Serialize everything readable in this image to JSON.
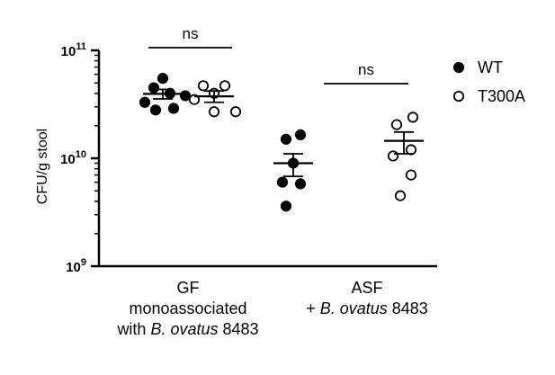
{
  "chart_data": {
    "type": "scatter",
    "ylabel": "CFU/g stool",
    "yscale": "log",
    "ylim": [
      1000000000,
      100000000000
    ],
    "yticks": [
      {
        "value": 1000000000,
        "base": "10",
        "exp": "9"
      },
      {
        "value": 10000000000,
        "base": "10",
        "exp": "10"
      },
      {
        "value": 100000000000,
        "base": "10",
        "exp": "11"
      }
    ],
    "groups": [
      {
        "lines": [
          [
            {
              "text": "GF",
              "italic": false
            }
          ],
          [
            {
              "text": "monoassociated",
              "italic": false
            }
          ],
          [
            {
              "text": "with ",
              "italic": false
            },
            {
              "text": "B. ovatus",
              "italic": true
            },
            {
              "text": " 8483",
              "italic": false
            }
          ]
        ],
        "annotation": "ns",
        "series": [
          {
            "series_index": 0,
            "values": [
              55000000000,
              45000000000,
              40000000000,
              38000000000,
              33000000000,
              29000000000,
              28000000000
            ],
            "mean": 39500000000,
            "sem_low": 35500000000,
            "sem_high": 43500000000
          },
          {
            "series_index": 1,
            "values": [
              47000000000,
              47000000000,
              40000000000,
              35000000000,
              27000000000,
              27000000000
            ],
            "mean": 37500000000,
            "sem_low": 33000000000,
            "sem_high": 42000000000
          }
        ]
      },
      {
        "lines": [
          [
            {
              "text": "ASF",
              "italic": false
            }
          ],
          [
            {
              "text": "+ ",
              "italic": false
            },
            {
              "text": "B. ovatus",
              "italic": true
            },
            {
              "text": " 8483",
              "italic": false
            }
          ]
        ],
        "annotation": "ns",
        "series": [
          {
            "series_index": 0,
            "values": [
              16500000000,
              15000000000,
              9000000000,
              6000000000,
              5800000000,
              3600000000
            ],
            "mean": 9000000000,
            "sem_low": 6800000000,
            "sem_high": 11000000000
          },
          {
            "series_index": 1,
            "values": [
              24000000000,
              20500000000,
              12000000000,
              10500000000,
              7000000000,
              4500000000
            ],
            "mean": 14500000000,
            "sem_low": 11000000000,
            "sem_high": 17500000000
          }
        ]
      }
    ],
    "series": [
      {
        "name": "WT",
        "marker": "filled-circle",
        "color": "#000000"
      },
      {
        "name": "T300A",
        "marker": "open-circle",
        "color": "#000000"
      }
    ],
    "legend_position": "right",
    "grid": false
  }
}
